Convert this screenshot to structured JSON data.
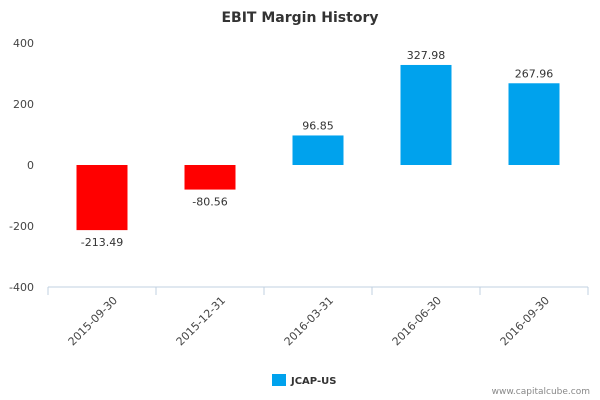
{
  "chart_data": {
    "type": "bar",
    "title": "EBIT Margin History",
    "xlabel": "",
    "ylabel": "",
    "categories": [
      "2015-09-30",
      "2015-12-31",
      "2016-03-31",
      "2016-06-30",
      "2016-09-30"
    ],
    "series": [
      {
        "name": "JCAP-US",
        "values": [
          -213.49,
          -80.56,
          96.85,
          327.98,
          267.96
        ]
      }
    ],
    "data_labels": [
      "-213.49",
      "-80.56",
      "96.85",
      "327.98",
      "267.96"
    ],
    "ylim": [
      -400,
      400
    ],
    "yticks": [
      400,
      200,
      0,
      -200,
      -400
    ],
    "grid": false,
    "legend_position": "bottom-center",
    "colors": {
      "positive": "#00a2ed",
      "negative": "#ff0000"
    }
  },
  "credit": "www.capitalcube.com"
}
